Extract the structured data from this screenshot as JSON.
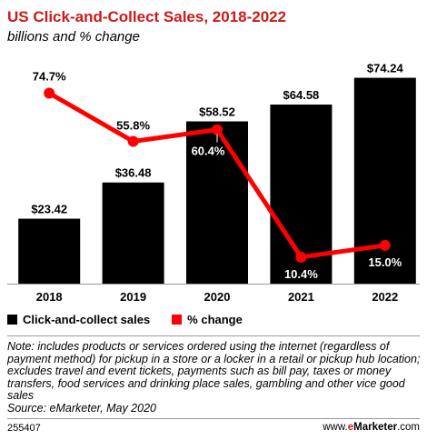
{
  "header": {
    "title": "US Click-and-Collect Sales, 2018-2022",
    "subtitle": "billions and % change"
  },
  "legend": {
    "bars_label": "Click-and-collect sales",
    "line_label": "% change"
  },
  "colors": {
    "bar": "#000000",
    "line": "#ff0000",
    "title": "#cc1a1a"
  },
  "chart_data": {
    "type": "bar",
    "categories": [
      "2018",
      "2019",
      "2020",
      "2021",
      "2022"
    ],
    "series": [
      {
        "name": "Click-and-collect sales",
        "type": "bar",
        "values": [
          23.42,
          36.48,
          58.52,
          64.58,
          74.24
        ],
        "labels": [
          "$23.42",
          "$36.48",
          "$58.52",
          "$64.58",
          "$74.24"
        ]
      },
      {
        "name": "% change",
        "type": "line",
        "values": [
          74.7,
          55.8,
          60.4,
          10.4,
          15.0
        ],
        "labels": [
          "74.7%",
          "55.8%",
          "60.4%",
          "10.4%",
          "15.0%"
        ]
      }
    ],
    "bar_ylim": [
      0,
      80
    ],
    "line_ylim": [
      0,
      87
    ],
    "grid": false,
    "legend_position": "bottom-left"
  },
  "note": {
    "text": "Note: includes products or services ordered using the internet (regardless of payment method) for pickup in a store or a locker in a retail or pickup hub location; excludes travel and event tickets, payments such as bill pay, taxes or money transfers, food services and drinking place sales, gambling and other vice good sales",
    "source": "Source: eMarketer, May 2020"
  },
  "footer": {
    "id": "255407",
    "brand_prefix": "www.",
    "brand_e": "e",
    "brand_name": "Marketer",
    "brand_suffix": ".com"
  }
}
